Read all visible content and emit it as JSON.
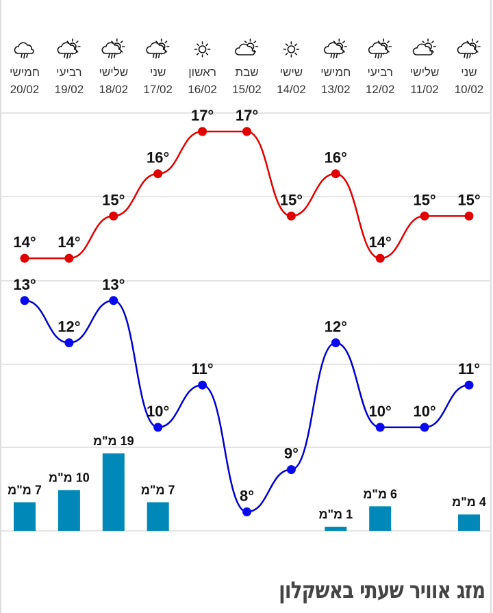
{
  "days": [
    {
      "day": "שני",
      "date": "10/02",
      "icon": "sun-cloud-rain-icon"
    },
    {
      "day": "שלישי",
      "date": "11/02",
      "icon": "partly-cloudy-icon"
    },
    {
      "day": "רביעי",
      "date": "12/02",
      "icon": "sun-cloud-rain-icon"
    },
    {
      "day": "חמישי",
      "date": "13/02",
      "icon": "sun-cloud-rain-icon"
    },
    {
      "day": "שישי",
      "date": "14/02",
      "icon": "sun-icon"
    },
    {
      "day": "שבת",
      "date": "15/02",
      "icon": "partly-cloudy-icon"
    },
    {
      "day": "ראשון",
      "date": "16/02",
      "icon": "sun-icon"
    },
    {
      "day": "שני",
      "date": "17/02",
      "icon": "sun-cloud-rain-icon"
    },
    {
      "day": "שלישי",
      "date": "18/02",
      "icon": "sun-cloud-rain-icon"
    },
    {
      "day": "רביעי",
      "date": "19/02",
      "icon": "sun-cloud-rain-icon"
    },
    {
      "day": "חמישי",
      "date": "20/02",
      "icon": "rain-cloud-icon"
    }
  ],
  "chart_data": {
    "type": "line",
    "categories": [
      "10/02",
      "11/02",
      "12/02",
      "13/02",
      "14/02",
      "15/02",
      "16/02",
      "17/02",
      "18/02",
      "19/02",
      "20/02"
    ],
    "x_direction": "right-to-left",
    "series": [
      {
        "name": "high",
        "unit": "°",
        "color": "#e00000",
        "values": [
          15,
          15,
          14,
          16,
          15,
          17,
          17,
          16,
          15,
          14,
          14
        ]
      },
      {
        "name": "low",
        "unit": "°",
        "color": "#0000cc",
        "values": [
          11,
          10,
          10,
          12,
          9,
          8,
          11,
          10,
          13,
          12,
          13
        ]
      },
      {
        "name": "rain",
        "type": "bar",
        "unit": "מ\"מ",
        "color": "#0088b8",
        "values": [
          4,
          null,
          6,
          1,
          null,
          null,
          null,
          7,
          19,
          10,
          7
        ]
      }
    ],
    "grid": true
  },
  "title": "מזג אוויר שעתי באשקלון"
}
